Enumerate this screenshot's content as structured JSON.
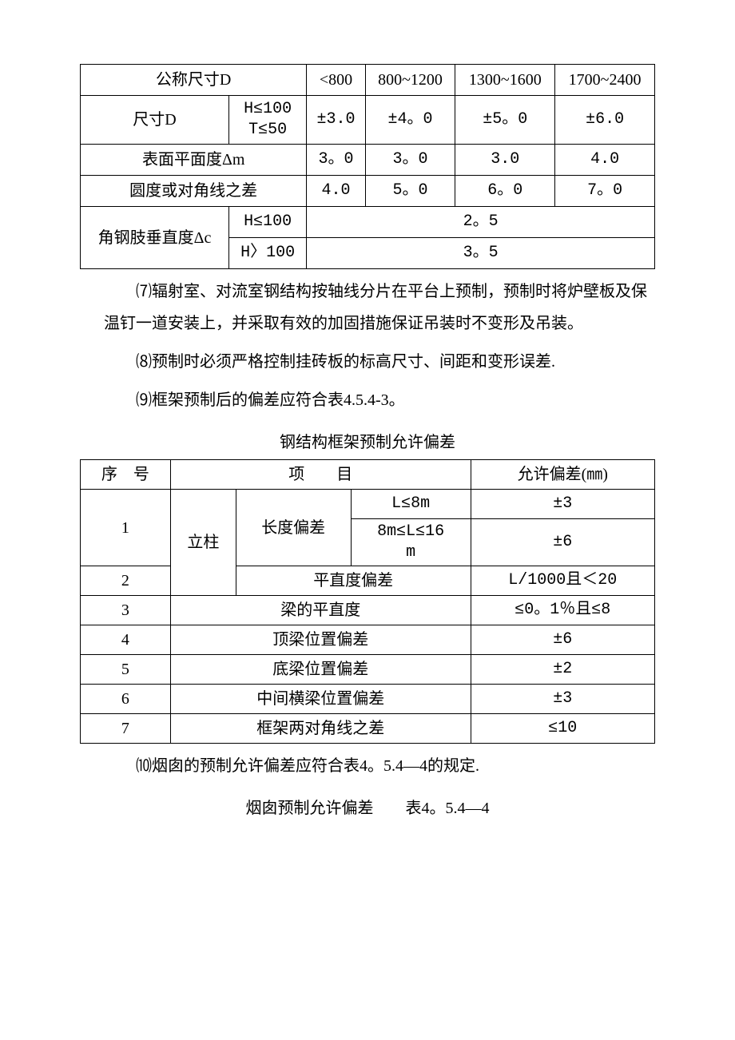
{
  "table1": {
    "rows": [
      {
        "label": "公称尺寸D",
        "sub": "",
        "c1": "<800",
        "c2": "800~1200",
        "c3": "1300~1600",
        "c4": "1700~2400"
      },
      {
        "label": "尺寸D",
        "sub": "H≤100\nT≤50",
        "c1": "±3.0",
        "c2": "±4。0",
        "c3": "±5。0",
        "c4": "±6.0"
      },
      {
        "label": "表面平面度Δm",
        "sub": "",
        "c1": "3。0",
        "c2": "3。0",
        "c3": "3.0",
        "c4": "4.0"
      },
      {
        "label": "圆度或对角线之差",
        "sub": "",
        "c1": "4.0",
        "c2": "5。0",
        "c3": "6。0",
        "c4": "7。0"
      },
      {
        "label": "角钢肢垂直度Δc",
        "sub1": "H≤100",
        "sub2": "H〉100",
        "v1": "2。5",
        "v2": "3。5"
      }
    ]
  },
  "para7": "⑺辐射室、对流室钢结构按轴线分片在平台上预制，预制时将炉壁板及保温钉一道安装上，并采取有效的加固措施保证吊装时不变形及吊装。",
  "para8": "⑻预制时必须严格控制挂砖板的标高尺寸、间距和变形误差.",
  "para9": "⑼框架预制后的偏差应符合表4.5.4-3。",
  "table2_title": "钢结构框架预制允许偏差",
  "table2": {
    "header": {
      "c1": "序　号",
      "c2": "项　　目",
      "c3": "允许偏差(㎜)"
    },
    "rows": [
      {
        "no": "1",
        "group": "立柱",
        "sub": "长度偏差",
        "cond": "L≤8m",
        "tol": "±3"
      },
      {
        "no": "",
        "group": "",
        "sub": "",
        "cond": "8m≤L≤16m",
        "tol": "±6"
      },
      {
        "no": "2",
        "item": "平直度偏差",
        "tol": "L/1000且＜20"
      },
      {
        "no": "3",
        "item": "梁的平直度",
        "tol": "≤0。1％且≤8"
      },
      {
        "no": "4",
        "item": "顶梁位置偏差",
        "tol": "±6"
      },
      {
        "no": "5",
        "item": "底梁位置偏差",
        "tol": "±2"
      },
      {
        "no": "6",
        "item": "中间横梁位置偏差",
        "tol": "±3"
      },
      {
        "no": "7",
        "item": "框架两对角线之差",
        "tol": "≤10"
      }
    ]
  },
  "para10": "⑽烟囱的预制允许偏差应符合表4。5.4—4的规定.",
  "table3_title": "烟囱预制允许偏差　　表4。5.4—4"
}
